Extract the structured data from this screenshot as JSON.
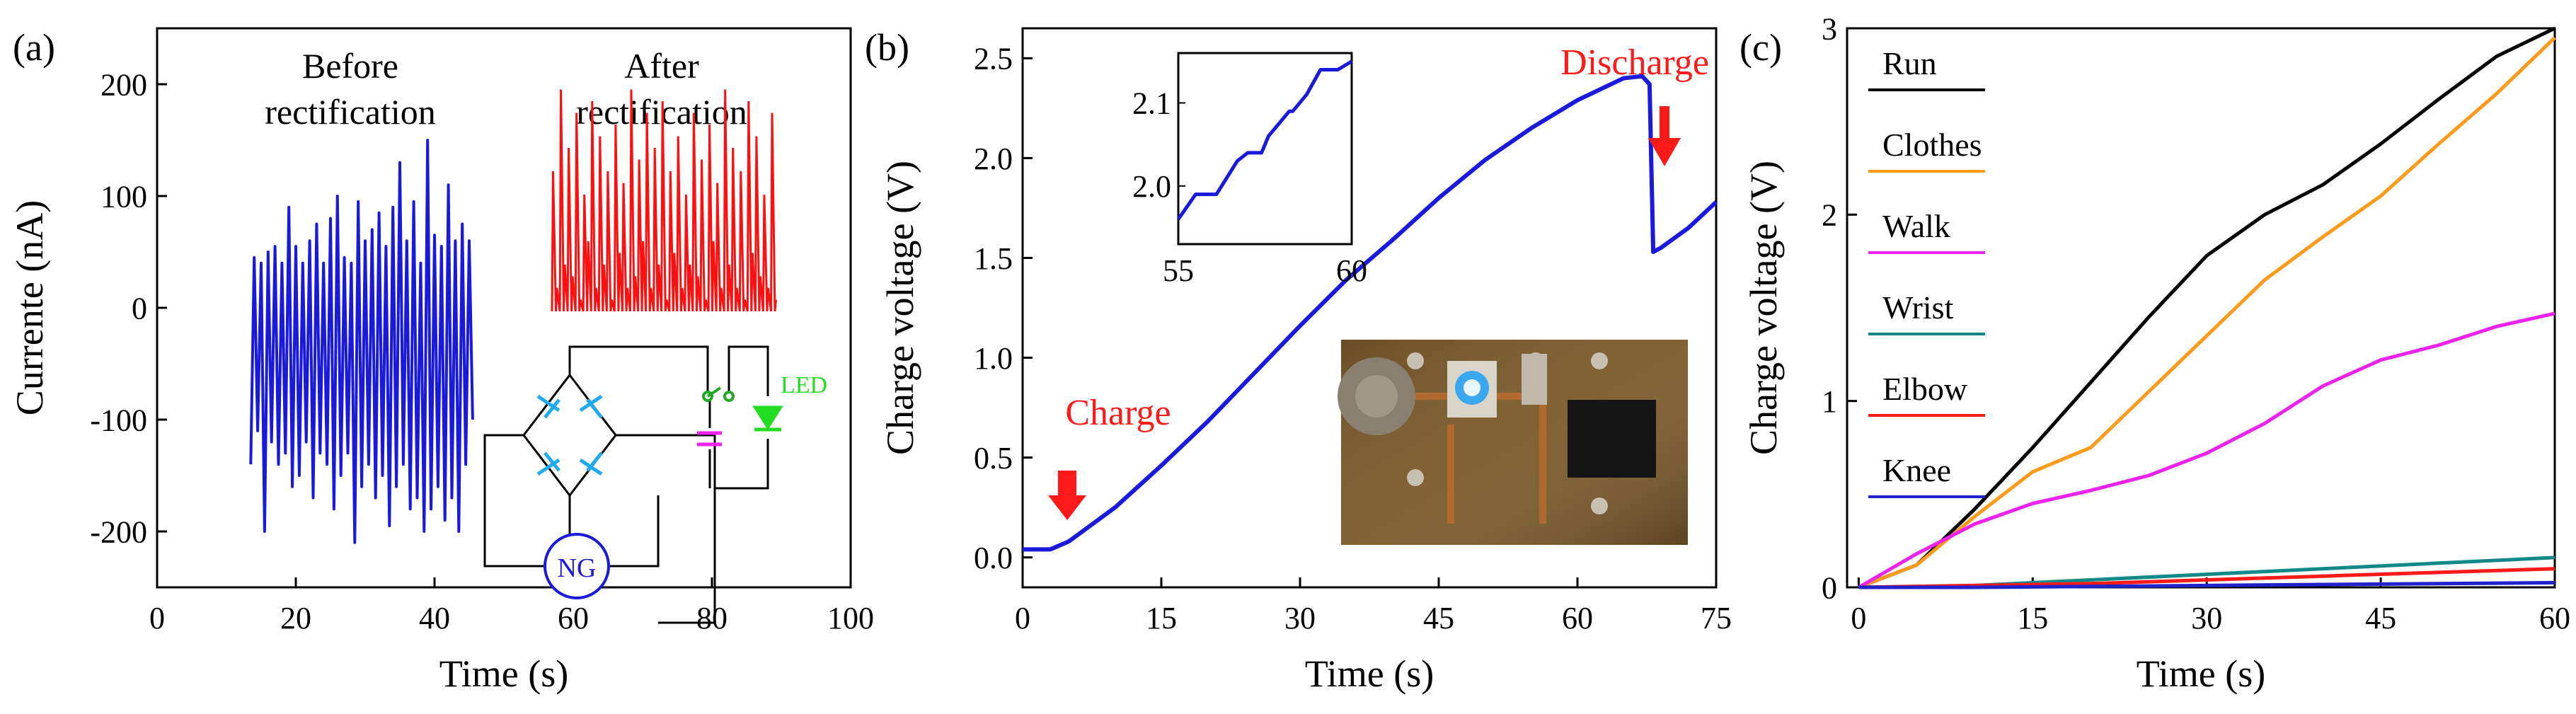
{
  "colors": {
    "axis": "#000000",
    "blue_trace": "#1a1adc",
    "red_trace": "#ff1010",
    "annotation_red": "#ff1a1a",
    "led_green": "#22dd22",
    "diode_cyan": "#22aaee",
    "cap_magenta": "#ee22ee",
    "photo_bg": "#7a5a2a"
  },
  "chart_data": [
    {
      "panel": "(a)",
      "type": "line",
      "xlabel": "Time (s)",
      "ylabel": "Currente (nA)",
      "xlim": [
        0,
        100
      ],
      "ylim": [
        -250,
        250
      ],
      "xticks": [
        0,
        20,
        40,
        60,
        80,
        100
      ],
      "yticks": [
        -200,
        -100,
        0,
        100,
        200
      ],
      "annotations": [
        {
          "lines": [
            "Before",
            "rectification"
          ]
        },
        {
          "lines": [
            "After",
            "rectification"
          ]
        }
      ],
      "series": [
        {
          "color": "blue",
          "x": [
            13.5,
            14,
            14.5,
            15,
            15.5,
            16,
            16.5,
            17,
            17.5,
            18,
            18.5,
            19,
            19.5,
            20,
            20.5,
            21,
            21.5,
            22,
            22.5,
            23,
            23.5,
            24,
            24.5,
            25,
            25.5,
            26,
            26.5,
            27,
            27.5,
            28,
            28.5,
            29,
            29.5,
            30,
            30.5,
            31,
            31.5,
            32,
            32.5,
            33,
            33.5,
            34,
            34.5,
            35,
            35.5,
            36,
            36.5,
            37,
            37.5,
            38,
            38.5,
            39,
            39.5,
            40,
            40.5,
            41,
            41.5,
            42,
            42.5,
            43,
            43.5,
            44,
            44.5,
            45,
            45.5
          ],
          "y": [
            -140,
            45,
            -110,
            40,
            -200,
            50,
            -120,
            55,
            -140,
            40,
            -130,
            90,
            -160,
            55,
            -150,
            40,
            -120,
            60,
            -170,
            75,
            -130,
            40,
            -140,
            80,
            -180,
            100,
            -150,
            45,
            -130,
            40,
            -210,
            95,
            -160,
            60,
            -140,
            70,
            -170,
            85,
            -150,
            55,
            -195,
            90,
            -160,
            130,
            -140,
            60,
            -180,
            95,
            -170,
            40,
            -200,
            150,
            -180,
            65,
            -160,
            55,
            -190,
            110,
            -170,
            60,
            -200,
            75,
            -140,
            60,
            -100
          ]
        },
        {
          "color": "red",
          "note": "rectified signal drawn in upper-right inset, relative amplitude 0-1",
          "y": [
            0.6,
            0.1,
            0.95,
            0.2,
            0.7,
            0.15,
            0.85,
            0.05,
            0.5,
            0.3,
            0.9,
            0.1,
            0.75,
            0.2,
            0.6,
            0.05,
            0.8,
            0.25,
            0.55,
            0.1,
            0.95,
            0.15,
            0.65,
            0.3,
            0.85,
            0.1,
            0.7,
            0.2,
            0.9,
            0.05,
            0.6,
            0.25,
            0.75,
            0.1,
            0.5,
            0.2,
            0.85,
            0.15,
            0.65,
            0.05,
            0.8,
            0.3,
            0.55,
            0.1,
            0.95,
            0.2,
            0.7,
            0.1,
            0.6,
            0.05,
            0.9,
            0.25,
            0.75,
            0.15,
            0.5,
            0.1,
            0.85,
            0.05
          ]
        }
      ],
      "circuit": {
        "generator_label": "NG",
        "led_label": "LED"
      }
    },
    {
      "panel": "(b)",
      "type": "line",
      "xlabel": "Time (s)",
      "ylabel": "Charge voltage (V)",
      "xlim": [
        0,
        75
      ],
      "ylim": [
        -0.15,
        2.65
      ],
      "xticks": [
        0,
        15,
        30,
        45,
        60,
        75
      ],
      "yticks": [
        0.0,
        0.5,
        1.0,
        1.5,
        2.0,
        2.5
      ],
      "annotations": [
        {
          "text": "Charge"
        },
        {
          "text": "Discharge"
        }
      ],
      "series": [
        {
          "color": "blue",
          "x": [
            0,
            3,
            5,
            10,
            15,
            20,
            25,
            30,
            35,
            40,
            45,
            50,
            55,
            60,
            65,
            67,
            67.8,
            68.2,
            69,
            72,
            75
          ],
          "y": [
            0.04,
            0.04,
            0.08,
            0.25,
            0.46,
            0.68,
            0.92,
            1.16,
            1.39,
            1.59,
            1.8,
            1.99,
            2.15,
            2.29,
            2.4,
            2.41,
            2.37,
            1.53,
            1.55,
            1.65,
            1.78
          ]
        }
      ],
      "inset": {
        "xlim": [
          55,
          60
        ],
        "ylim": [
          1.93,
          2.16
        ],
        "xticks": [
          55,
          60
        ],
        "yticks": [
          2.0,
          2.1
        ],
        "x": [
          55,
          55.5,
          55.7,
          56.1,
          56.7,
          57,
          57.4,
          57.6,
          58.2,
          58.3,
          58.7,
          59.1,
          59.6,
          60
        ],
        "y": [
          1.96,
          1.99,
          1.99,
          1.99,
          2.03,
          2.04,
          2.04,
          2.06,
          2.09,
          2.09,
          2.11,
          2.14,
          2.14,
          2.15
        ]
      }
    },
    {
      "panel": "(c)",
      "type": "line",
      "xlabel": "Time (s)",
      "ylabel": "Charge voltage (V)",
      "xlim": [
        -1,
        60
      ],
      "ylim": [
        0,
        3
      ],
      "xticks": [
        0,
        15,
        30,
        45,
        60
      ],
      "yticks": [
        0,
        1,
        2,
        3
      ],
      "legend": "top-left",
      "series": [
        {
          "name": "Run",
          "color": "#000000",
          "x": [
            0,
            5,
            10,
            15,
            20,
            25,
            30,
            35,
            40,
            45,
            50,
            55,
            60
          ],
          "y": [
            0.0,
            0.12,
            0.42,
            0.75,
            1.1,
            1.45,
            1.78,
            2.0,
            2.16,
            2.38,
            2.62,
            2.85,
            3.02
          ]
        },
        {
          "name": "Clothes",
          "color": "#ff9a1a",
          "x": [
            0,
            5,
            10,
            15,
            20,
            25,
            30,
            35,
            40,
            45,
            50,
            55,
            60
          ],
          "y": [
            0.0,
            0.12,
            0.38,
            0.62,
            0.75,
            1.05,
            1.35,
            1.65,
            1.88,
            2.1,
            2.38,
            2.65,
            2.95
          ]
        },
        {
          "name": "Walk",
          "color": "#ee22ee",
          "x": [
            0,
            5,
            10,
            15,
            20,
            25,
            30,
            35,
            40,
            45,
            50,
            55,
            60
          ],
          "y": [
            0.0,
            0.18,
            0.34,
            0.45,
            0.52,
            0.6,
            0.72,
            0.88,
            1.08,
            1.22,
            1.3,
            1.4,
            1.47
          ]
        },
        {
          "name": "Wrist",
          "color": "#128888",
          "x": [
            0,
            10,
            20,
            30,
            40,
            50,
            60
          ],
          "y": [
            0.0,
            0.01,
            0.04,
            0.07,
            0.1,
            0.13,
            0.16
          ]
        },
        {
          "name": "Elbow",
          "color": "#ff1a1a",
          "x": [
            0,
            10,
            20,
            30,
            40,
            50,
            60
          ],
          "y": [
            0.0,
            0.01,
            0.02,
            0.04,
            0.06,
            0.08,
            0.1
          ]
        },
        {
          "name": "Knee",
          "color": "#2222cc",
          "x": [
            0,
            10,
            20,
            30,
            40,
            50,
            60
          ],
          "y": [
            0.0,
            0.0,
            0.005,
            0.01,
            0.015,
            0.02,
            0.025
          ]
        }
      ]
    }
  ]
}
